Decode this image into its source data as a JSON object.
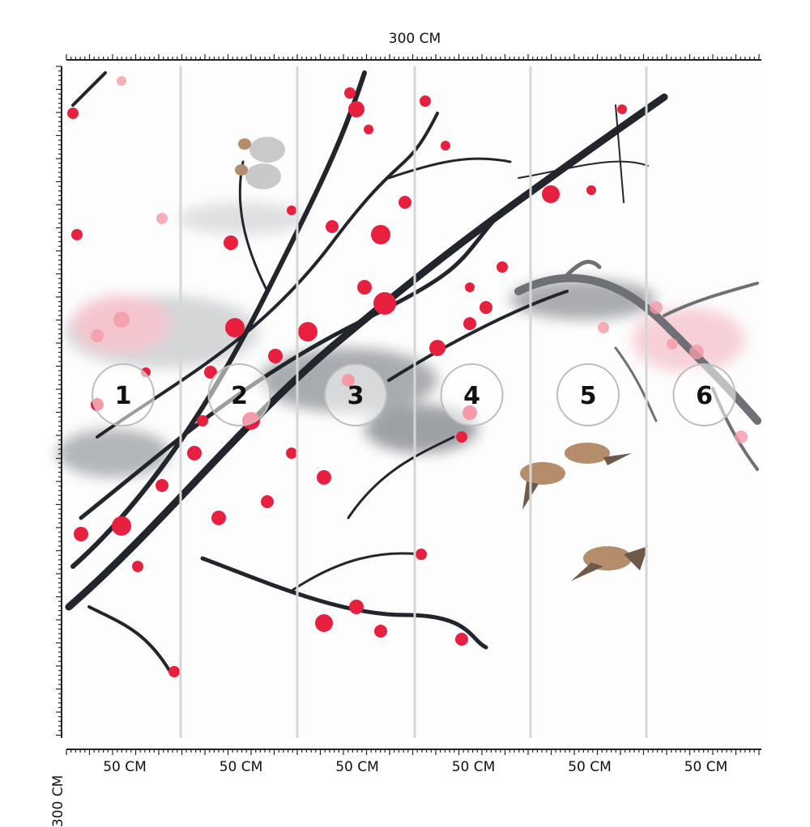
{
  "dimensions": {
    "total_width": "300 CM",
    "total_height": "300 CM"
  },
  "panels": [
    {
      "number": "1",
      "width_label": "50 CM"
    },
    {
      "number": "2",
      "width_label": "50 CM"
    },
    {
      "number": "3",
      "width_label": "50 CM"
    },
    {
      "number": "4",
      "width_label": "50 CM"
    },
    {
      "number": "5",
      "width_label": "50 CM"
    },
    {
      "number": "6",
      "width_label": "50 CM"
    }
  ],
  "colors": {
    "blossom": "#e8203f",
    "blossom_light": "#f59aa8",
    "branch": "#22262c",
    "ink_wash": "#9aa0a6",
    "bird": "#b58d6b",
    "panel_divider": "#d6d6d6"
  }
}
